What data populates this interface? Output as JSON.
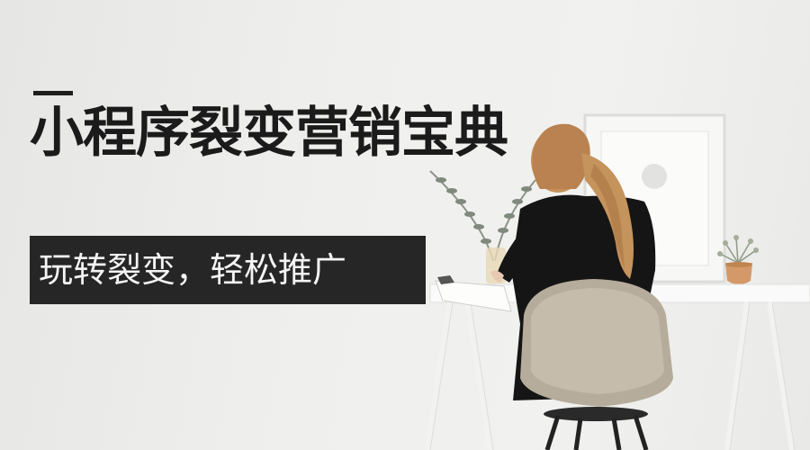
{
  "banner": {
    "title": "小程序裂变营销宝典",
    "tagline": "玩转裂变，轻松推广"
  },
  "colors": {
    "title_text": "#1b1b1b",
    "tagline_background": "#262626",
    "tagline_text": "#f4f4f4",
    "wall": "#eeeeec"
  },
  "photo": {
    "depicts": [
      "woman-writing-icon",
      "chair-icon",
      "desk-icon",
      "picture-frame-icon",
      "plant-icon",
      "vase-icon"
    ]
  }
}
